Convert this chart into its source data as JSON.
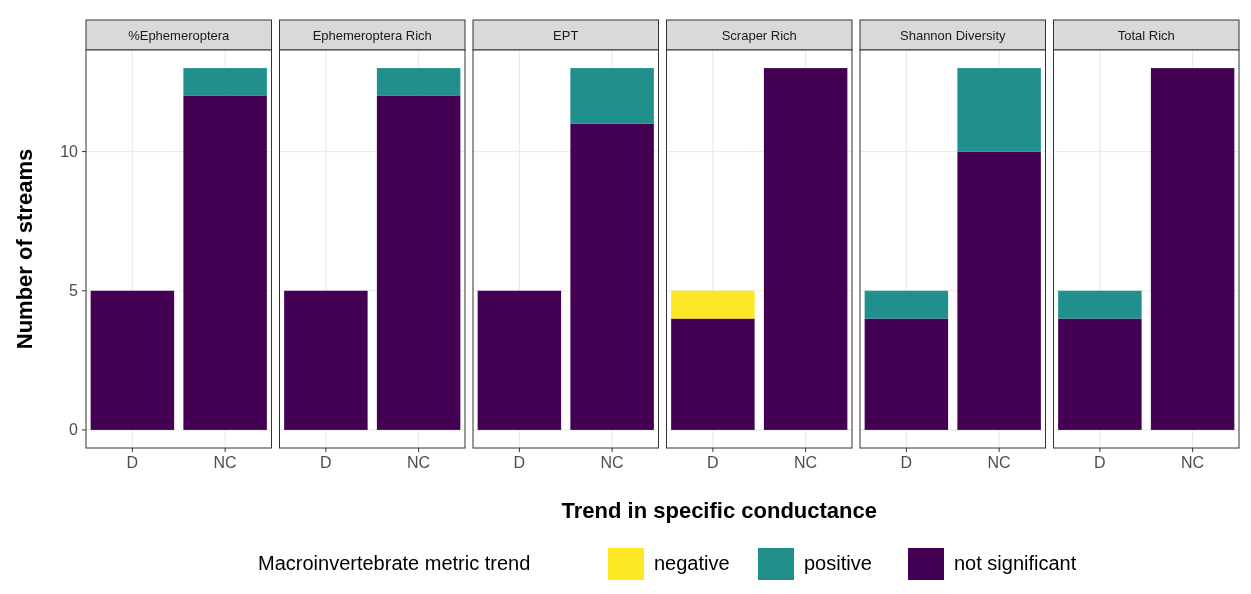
{
  "chart_data": [
    {
      "type": "bar",
      "title": "%Ephemeroptera",
      "ylabel": "Number of streams",
      "legend_title": "Macroinvertebrate metric trend",
      "legend": "bottom",
      "stacked": true,
      "grid": true,
      "categories": [
        "D",
        "NC"
      ],
      "ylim": [
        -0.65,
        13.65
      ],
      "yticks": [
        0,
        5,
        10
      ],
      "series": [
        {
          "name": "not significant",
          "color": "#440154",
          "values": [
            5,
            12
          ]
        },
        {
          "name": "positive",
          "color": "#21908c",
          "values": [
            null,
            1
          ]
        },
        {
          "name": "negative",
          "color": "#fde725",
          "values": [
            null,
            null
          ]
        }
      ]
    },
    {
      "type": "bar",
      "title": "Ephemeroptera Rich",
      "stacked": true,
      "grid": true,
      "tick_labels": "x",
      "categories": [
        "D",
        "NC"
      ],
      "ylim": [
        -0.65,
        13.65
      ],
      "yticks": [
        0,
        5,
        10
      ],
      "series": [
        {
          "color": "#440154",
          "values": [
            5,
            12
          ]
        },
        {
          "color": "#21908c",
          "values": [
            null,
            1
          ]
        }
      ]
    },
    {
      "type": "bar",
      "title": "EPT",
      "stacked": true,
      "grid": true,
      "tick_labels": "x",
      "categories": [
        "D",
        "NC"
      ],
      "ylim": [
        -0.65,
        13.65
      ],
      "yticks": [
        0,
        5,
        10
      ],
      "series": [
        {
          "color": "#440154",
          "values": [
            5,
            11
          ]
        },
        {
          "color": "#21908c",
          "values": [
            null,
            2
          ]
        }
      ]
    },
    {
      "type": "bar",
      "title": "Scraper Rich",
      "xlabel": "Trend in specific conductance",
      "stacked": true,
      "grid": true,
      "tick_labels": "x",
      "categories": [
        "D",
        "NC"
      ],
      "ylim": [
        -0.65,
        13.65
      ],
      "yticks": [
        0,
        5,
        10
      ],
      "series": [
        {
          "color": "#440154",
          "values": [
            4,
            13
          ]
        },
        {
          "color": "#fde725",
          "values": [
            1,
            null
          ]
        }
      ]
    },
    {
      "type": "bar",
      "title": "Shannon Diversity",
      "stacked": true,
      "grid": true,
      "tick_labels": "x",
      "categories": [
        "D",
        "NC"
      ],
      "ylim": [
        -0.65,
        13.65
      ],
      "yticks": [
        0,
        5,
        10
      ],
      "series": [
        {
          "color": "#440154",
          "values": [
            4,
            10
          ]
        },
        {
          "color": "#21908c",
          "values": [
            1,
            3
          ]
        }
      ]
    },
    {
      "type": "bar",
      "title": "Total Rich",
      "stacked": true,
      "grid": true,
      "tick_labels": "x",
      "categories": [
        "D",
        "NC"
      ],
      "ylim": [
        -0.65,
        13.65
      ],
      "yticks": [
        0,
        5,
        10
      ],
      "series": [
        {
          "color": "#440154",
          "values": [
            4,
            13
          ]
        },
        {
          "color": "#21908c",
          "values": [
            1,
            null
          ]
        }
      ]
    }
  ]
}
